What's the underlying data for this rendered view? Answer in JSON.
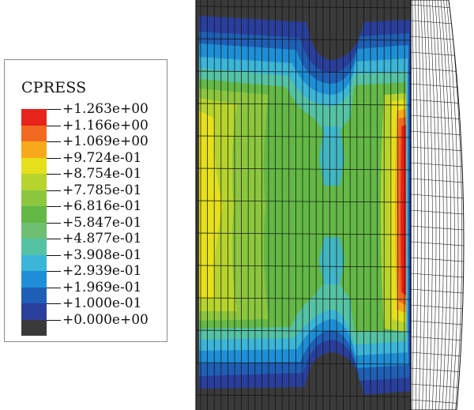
{
  "legend": {
    "title": "CPRESS",
    "labels": [
      "+1.263e+00",
      "+1.166e+00",
      "+1.069e+00",
      "+9.724e-01",
      "+8.754e-01",
      "+7.785e-01",
      "+6.816e-01",
      "+5.847e-01",
      "+4.877e-01",
      "+3.908e-01",
      "+2.939e-01",
      "+1.969e-01",
      "+1.000e-01",
      "+0.000e+00"
    ],
    "colors": [
      "#e8231a",
      "#f26a21",
      "#f7a91b",
      "#e5e01b",
      "#b7d42e",
      "#8cc63f",
      "#63b846",
      "#6fbf73",
      "#55c2a4",
      "#3bb5d8",
      "#1e8fd6",
      "#1f5fb5",
      "#2a3f9b",
      "#3a3a3a"
    ]
  }
}
